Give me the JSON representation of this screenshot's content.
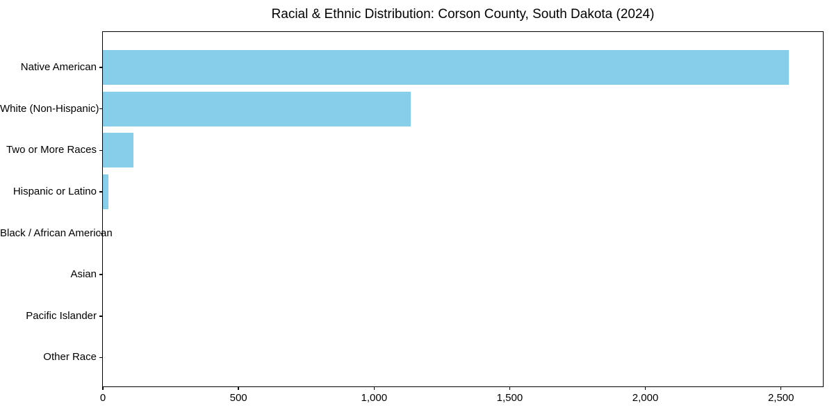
{
  "title": "Racial & Ethnic Distribution: Corson County, South Dakota (2024)",
  "chart_data": {
    "type": "bar",
    "orientation": "horizontal",
    "title": "Racial & Ethnic Distribution: Corson County, South Dakota (2024)",
    "categories": [
      "Native American",
      "White (Non-Hispanic)",
      "Two or More Races",
      "Hispanic or Latino",
      "Black / African American",
      "Asian",
      "Pacific Islander",
      "Other Race"
    ],
    "values": [
      2530,
      1136,
      113,
      20,
      0,
      0,
      0,
      0
    ],
    "xlabel": "",
    "ylabel": "",
    "xlim": [
      0,
      2657
    ],
    "x_ticks": [
      0,
      500,
      1000,
      1500,
      2000,
      2500
    ],
    "x_tick_labels": [
      "0",
      "500",
      "1,000",
      "1,500",
      "2,000",
      "2,500"
    ],
    "bar_color": "#87CEEB",
    "text_color": "#000000",
    "background_color": "#ffffff",
    "grid": false,
    "legend": null
  }
}
